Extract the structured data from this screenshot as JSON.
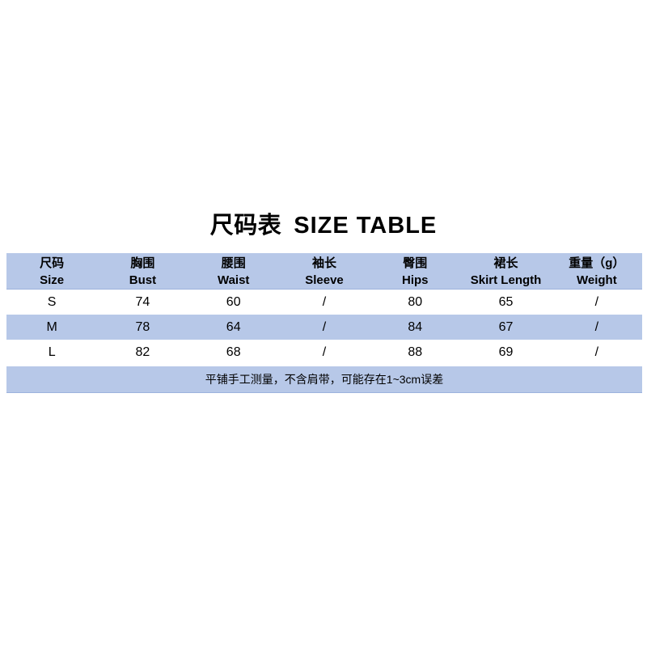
{
  "page": {
    "title_zh": "尺码表",
    "title_en": "SIZE TABLE"
  },
  "table": {
    "columns": [
      {
        "zh": "尺码",
        "en": "Size"
      },
      {
        "zh": "胸围",
        "en": "Bust"
      },
      {
        "zh": "腰围",
        "en": "Waist"
      },
      {
        "zh": "袖长",
        "en": "Sleeve"
      },
      {
        "zh": "臀围",
        "en": "Hips"
      },
      {
        "zh": "裙长",
        "en": "Skirt Length"
      },
      {
        "zh": "重量（g）",
        "en": "Weight"
      }
    ],
    "rows": [
      {
        "cells": [
          "S",
          "74",
          "60",
          "/",
          "80",
          "65",
          "/"
        ]
      },
      {
        "cells": [
          "M",
          "78",
          "64",
          "/",
          "84",
          "67",
          "/"
        ]
      },
      {
        "cells": [
          "L",
          "82",
          "68",
          "/",
          "88",
          "69",
          "/"
        ]
      }
    ],
    "note": "平铺手工测量，不含肩带，可能存在1~3cm误差"
  },
  "colors": {
    "band_blue": "#b7c8e8",
    "background": "#ffffff",
    "text": "#000000"
  },
  "chart_data": {
    "type": "table",
    "title": "尺码表 SIZE TABLE",
    "columns": [
      "尺码 Size",
      "胸围 Bust",
      "腰围 Waist",
      "袖长 Sleeve",
      "臀围 Hips",
      "裙长 Skirt Length",
      "重量（g） Weight"
    ],
    "rows": [
      [
        "S",
        "74",
        "60",
        "/",
        "80",
        "65",
        "/"
      ],
      [
        "M",
        "78",
        "64",
        "/",
        "84",
        "67",
        "/"
      ],
      [
        "L",
        "82",
        "68",
        "/",
        "88",
        "69",
        "/"
      ]
    ],
    "note": "平铺手工测量，不含肩带，可能存在1~3cm误差",
    "units": "cm"
  }
}
